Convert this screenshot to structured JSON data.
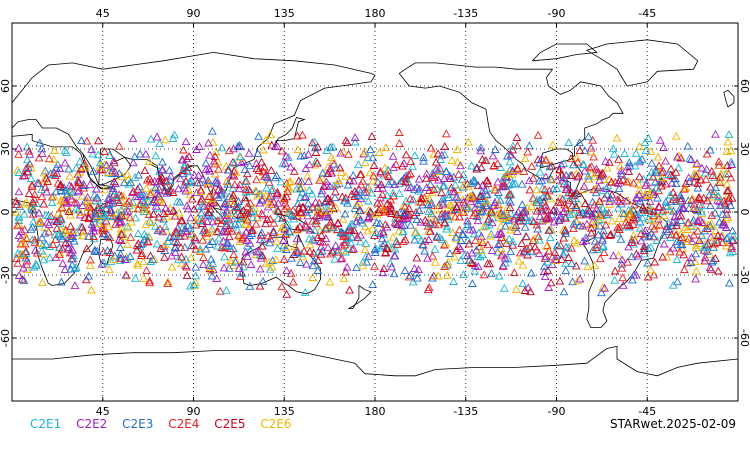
{
  "map": {
    "lon_ticks": [
      "45",
      "90",
      "135",
      "180",
      "-135",
      "-90",
      "-45"
    ],
    "lat_ticks": [
      "60",
      "30",
      "0",
      "-30",
      "-60"
    ],
    "lat_range": [
      -90,
      90
    ],
    "lon_range": [
      0,
      360
    ],
    "observation_lat_band": [
      -40,
      40
    ],
    "marker_shape": "triangle-outline",
    "grid": "dotted"
  },
  "legend": {
    "items": [
      {
        "label": "C2E1",
        "color": "#1eb4d2"
      },
      {
        "label": "C2E2",
        "color": "#a01ec8"
      },
      {
        "label": "C2E3",
        "color": "#1e6ed2"
      },
      {
        "label": "C2E4",
        "color": "#e61e1e"
      },
      {
        "label": "C2E5",
        "color": "#c8001e"
      },
      {
        "label": "C2E6",
        "color": "#f0b400"
      }
    ]
  },
  "footer": {
    "label": "STARwet.2025-02-09"
  }
}
